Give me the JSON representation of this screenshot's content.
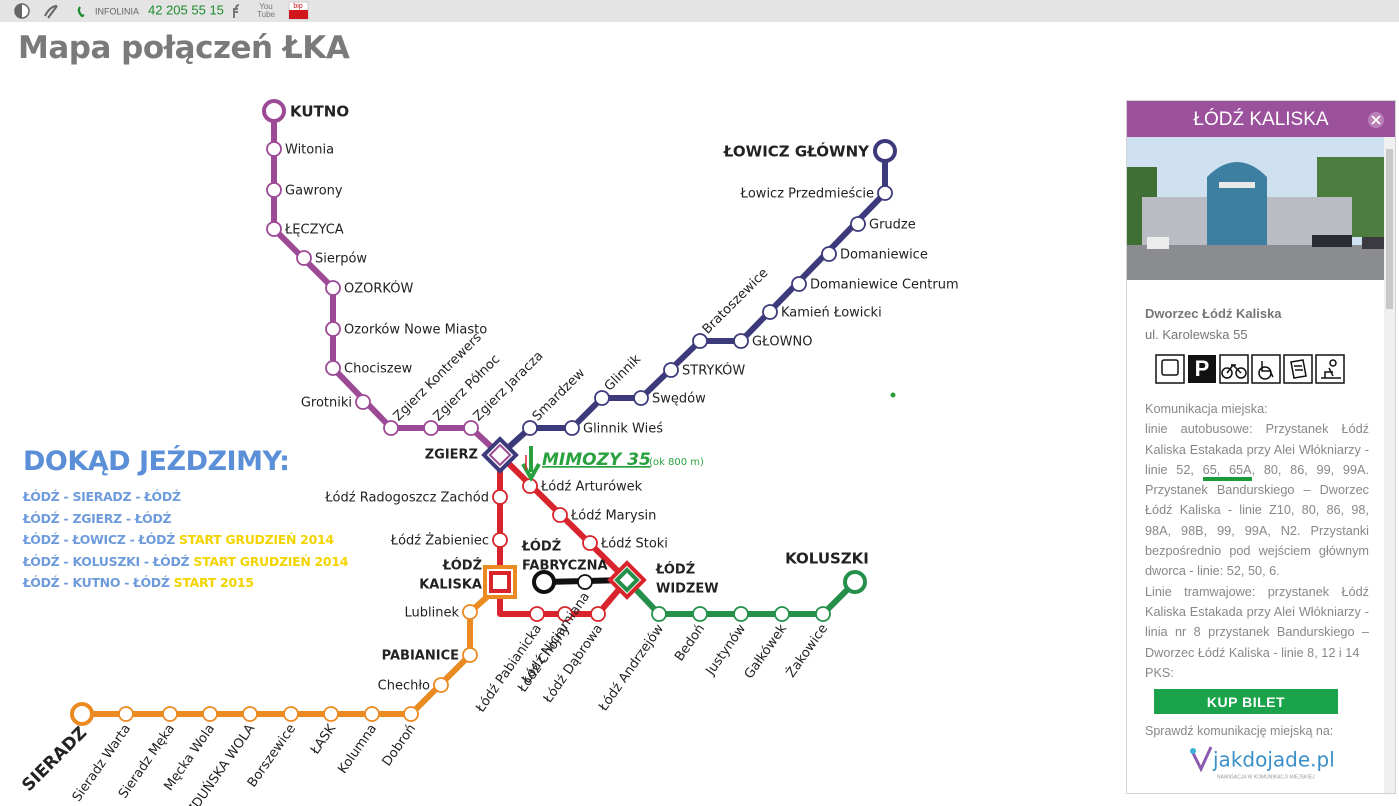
{
  "topbar": {
    "infoline_label": "INFOLINIA",
    "infoline_phone": "42 205 55 15",
    "youtube": [
      "You",
      "Tube"
    ],
    "bip": "bip"
  },
  "page_title": "Mapa połączeń ŁKA",
  "map": {
    "lines": [
      {
        "stations": [
          "KUTNO",
          "Witonia",
          "Gawrony",
          "ŁĘCZYCA",
          "Sierpów",
          "OZORKÓW",
          "Ozorków Nowe Miasto",
          "Chociszew",
          "Grotniki",
          "Zgierz Kontrewers",
          "Zgierz Północ",
          "Zgierz Jaracza"
        ]
      },
      {
        "stations": [
          "Smardzew",
          "Glinnik Wieś",
          "Glinnik",
          "Swędów",
          "STRYKÓW",
          "Bratoszewice",
          "GŁOWNO",
          "Kamień Łowicki",
          "Domaniewice Centrum",
          "Domaniewice",
          "Grudze",
          "Łowicz Przedmieście",
          "ŁOWICZ GŁÓWNY"
        ]
      },
      {
        "stations": [
          "Łódź Arturówek",
          "Łódź Marysin",
          "Łódź Stoki"
        ]
      },
      {
        "stations": [
          "Łódź Radogoszcz Zachód",
          "Łódź Żabieniec",
          "Łódź Pabianicka",
          "Łódź Chojny",
          "Łódź Dąbrowa"
        ]
      },
      {
        "stations": [
          "Łódź Niciarniana"
        ]
      },
      {
        "stations": [
          "Łódź Andrzejów",
          "Bedoń",
          "Justynów",
          "Gałkówek",
          "Żakowice",
          "KOLUSZKI"
        ]
      },
      {
        "stations": [
          "Lublinek",
          "PABIANICE",
          "Chechło",
          "Dobroń",
          "Kolumna",
          "ŁASK",
          "Borszewice",
          "ZDUŃSKA WOLA",
          "Męcka Wola",
          "Sieradz Męka",
          "Sieradz Warta",
          "SIERADZ"
        ]
      }
    ],
    "hubs": [
      [
        "ZGIERZ"
      ],
      [
        "ŁÓDŹ",
        "KALISKA"
      ],
      [
        "ŁÓDŹ",
        "FABRYCZNA"
      ],
      [
        "ŁÓDŹ",
        "WIDZEW"
      ]
    ],
    "annotation": {
      "label": "MIMOZY 35",
      "note": "(ok 800 m)"
    }
  },
  "destinations": {
    "title": "DOKĄD JEŹDZIMY:",
    "routes": [
      {
        "route": "ŁÓDŹ - SIERADZ - ŁÓDŹ"
      },
      {
        "route": "ŁÓDŹ - ZGIERZ - ŁÓDŹ"
      },
      {
        "route": "ŁÓDŹ - ŁOWICZ - ŁÓDŹ",
        "note": "START GRUDZIEŃ 2014"
      },
      {
        "route": "ŁÓDŹ - KOLUSZKI - ŁÓDŹ",
        "note": "START GRUDZIEŃ 2014"
      },
      {
        "route": "ŁÓDŹ - KUTNO - ŁÓDŹ",
        "note": "START 2015"
      }
    ]
  },
  "panel": {
    "title": "ŁÓDŹ KALISKA",
    "station_name": "Dworzec Łódź Kaliska",
    "address": "ul. Karolewska 55",
    "parking_icon": "P",
    "transport_heading": "Komunikacja miejska:",
    "bus_text_before": "linie autobusowe: Przystanek Łódź Kaliska Estakada przy Alei Włókniarzy - linie 52, ",
    "bus_text_highlight": "65, 65A",
    "bus_text_after": ", 80, 86, 99, 99A. Przystanek Bandurskiego – Dworzec Łódź Kaliska - linie Z10, 80, 86, 98, 98A, 98B, 99, 99A, N2. Przystanki bezpośrednio pod wejściem głównym dworca - linie: 52, 50, 6.",
    "tram_text": "Linie tramwajowe: przystanek Łódź Kaliska Estakada przy Alei Włókniarzy - linia nr 8 przystanek Bandurskiego – Dworzec Łódź Kaliska - linie 8, 12 i 14",
    "pks_text": "PKS:",
    "button": "KUP BILET",
    "check_text": "Sprawdź komunikację miejską na:",
    "logo": "jakdojade.pl",
    "logo_tagline": "NAWIGACJA W KOMUNIKACJI MIEJSKIEJ"
  }
}
